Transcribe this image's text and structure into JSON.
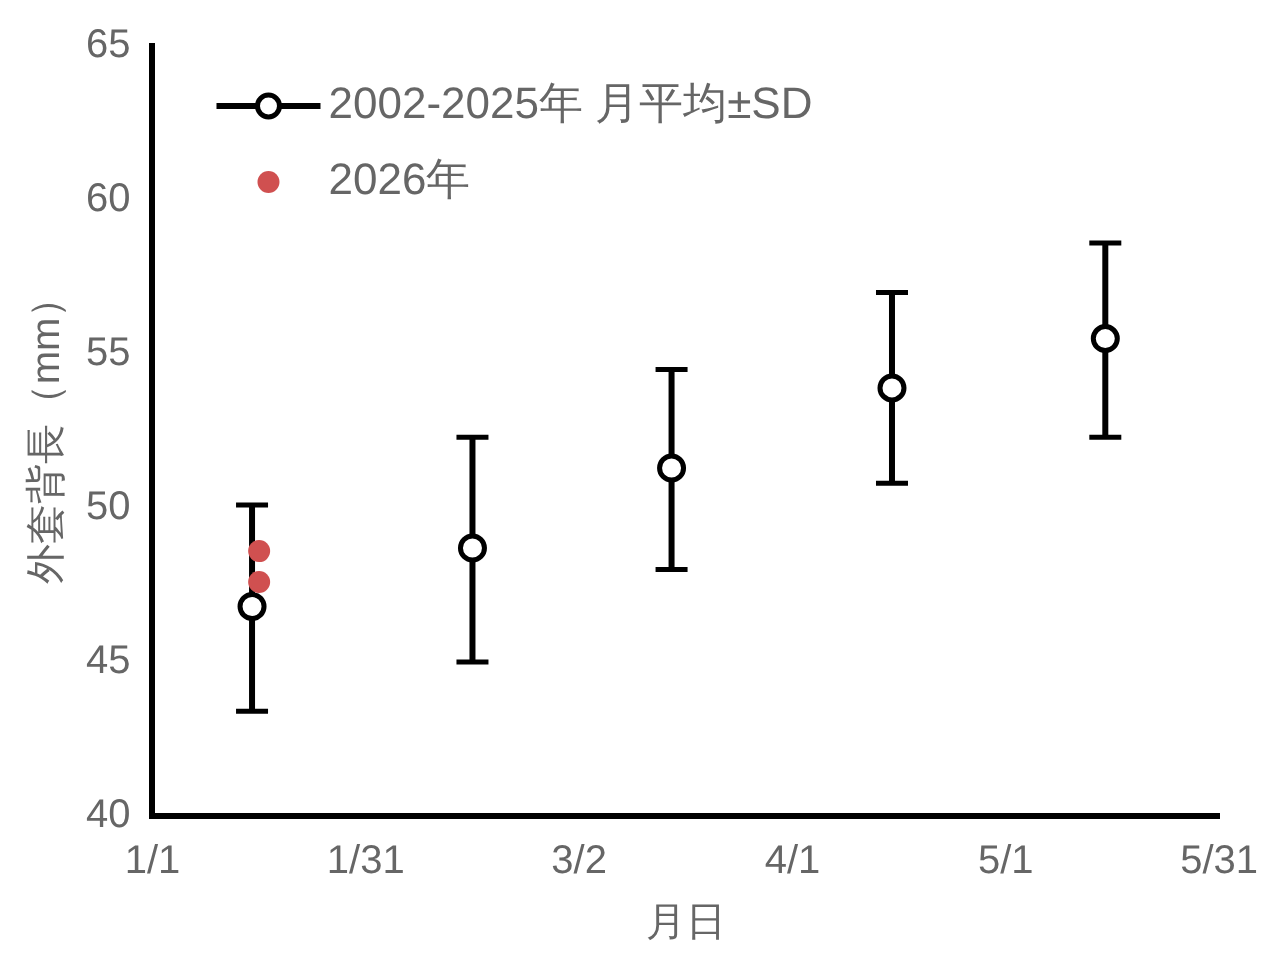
{
  "chart_data": {
    "type": "scatter",
    "xlabel": "月日",
    "ylabel": "外套背長（mm）",
    "xlim": [
      "--01-01",
      "--05-31"
    ],
    "xticks": [
      {
        "value": "--01-01",
        "label": "1/1"
      },
      {
        "value": "--01-31",
        "label": "1/31"
      },
      {
        "value": "--03-02",
        "label": "3/2"
      },
      {
        "value": "--04-01",
        "label": "4/1"
      },
      {
        "value": "--05-01",
        "label": "5/1"
      },
      {
        "value": "--05-31",
        "label": "5/31"
      }
    ],
    "ylim": [
      40,
      65
    ],
    "yticks": [
      40,
      45,
      50,
      55,
      60,
      65
    ],
    "grid": false,
    "legend": "top left",
    "marker": "circle",
    "series": [
      {
        "name": "2002-2025年 月平均±SD",
        "color": "#000000",
        "x": [
          "--01-15",
          "--02-15",
          "--03-15",
          "--04-15",
          "--05-15"
        ],
        "values": [
          46.8,
          48.7,
          51.3,
          53.9,
          55.5
        ],
        "errors": [
          [
            43.4,
            50.1
          ],
          [
            45.0,
            52.3
          ],
          [
            48.0,
            54.5
          ],
          [
            50.8,
            57.0
          ],
          [
            52.3,
            58.6
          ]
        ]
      },
      {
        "name": "2026年",
        "color": "#d05050",
        "x": [
          "--01-16",
          "--01-16"
        ],
        "values": [
          48.6,
          47.6
        ]
      }
    ]
  }
}
